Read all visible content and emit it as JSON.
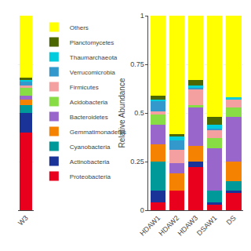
{
  "chart_data": [
    {
      "type": "bar",
      "stacked": true,
      "categories": [
        "W3"
      ],
      "series": [
        {
          "name": "Proteobacteria",
          "color": "#E8001D",
          "values": [
            0.4
          ]
        },
        {
          "name": "Actinobacteria",
          "color": "#1A3399",
          "values": [
            0.1
          ]
        },
        {
          "name": "Cyanobacteria",
          "color": "#009999",
          "values": [
            0.04
          ]
        },
        {
          "name": "Gemmatimonadetes",
          "color": "#F58200",
          "values": [
            0.03
          ]
        },
        {
          "name": "Bacteroidetes",
          "color": "#9966CC",
          "values": [
            0.02
          ]
        },
        {
          "name": "Acidobacteria",
          "color": "#88DD44",
          "values": [
            0.04
          ]
        },
        {
          "name": "Firmicutes",
          "color": "#F4A0A0",
          "values": [
            0.01
          ]
        },
        {
          "name": "Verrucomicrobia",
          "color": "#3399CC",
          "values": [
            0.02
          ]
        },
        {
          "name": "Thaumarchaeota",
          "color": "#00CCDD",
          "values": [
            0.01
          ]
        },
        {
          "name": "Planctomycetes",
          "color": "#4C6600",
          "values": [
            0.01
          ]
        },
        {
          "name": "Others",
          "color": "#FFFF00",
          "values": [
            0.32
          ]
        }
      ],
      "ylim": [
        0,
        1
      ],
      "yticks": [
        0,
        0.25,
        0.5,
        0.75,
        1
      ],
      "grid": true,
      "tick_labels": "x",
      "legend": "upper left"
    },
    {
      "type": "bar",
      "stacked": true,
      "categories": [
        "HDAW1",
        "HDAW2",
        "HDAW3",
        "DSAW1",
        "DS"
      ],
      "series": [
        {
          "name": "Proteobacteria",
          "color": "#E8001D",
          "values": [
            0.04,
            0.1,
            0.22,
            0.03,
            0.09
          ]
        },
        {
          "name": "Actinobacteria",
          "color": "#1A3399",
          "values": [
            0.06,
            0.0,
            0.03,
            0.01,
            0.01
          ]
        },
        {
          "name": "Cyanobacteria",
          "color": "#009999",
          "values": [
            0.15,
            0.0,
            0.0,
            0.06,
            0.05
          ]
        },
        {
          "name": "Gemmatimonadetes",
          "color": "#F58200",
          "values": [
            0.09,
            0.09,
            0.08,
            0.0,
            0.1
          ]
        },
        {
          "name": "Bacteroidetes",
          "color": "#9966CC",
          "values": [
            0.1,
            0.05,
            0.2,
            0.22,
            0.23
          ]
        },
        {
          "name": "Acidobacteria",
          "color": "#88DD44",
          "values": [
            0.05,
            0.0,
            0.01,
            0.05,
            0.05
          ]
        },
        {
          "name": "Firmicutes",
          "color": "#F4A0A0",
          "values": [
            0.02,
            0.07,
            0.08,
            0.04,
            0.04
          ]
        },
        {
          "name": "Verrucomicrobia",
          "color": "#3399CC",
          "values": [
            0.05,
            0.05,
            0.01,
            0.01,
            0.0
          ]
        },
        {
          "name": "Thaumarchaeota",
          "color": "#00CCDD",
          "values": [
            0.01,
            0.02,
            0.01,
            0.02,
            0.01
          ]
        },
        {
          "name": "Planctomycetes",
          "color": "#4C6600",
          "values": [
            0.02,
            0.01,
            0.03,
            0.04,
            0.0
          ]
        },
        {
          "name": "Others",
          "color": "#FFFF00",
          "values": [
            0.41,
            0.61,
            0.33,
            0.52,
            0.42
          ]
        }
      ],
      "ylabel": "Relative Abundance",
      "ylim": [
        0,
        1
      ],
      "yticks": [
        0,
        0.25,
        0.5,
        0.75,
        1
      ],
      "grid": true
    }
  ]
}
